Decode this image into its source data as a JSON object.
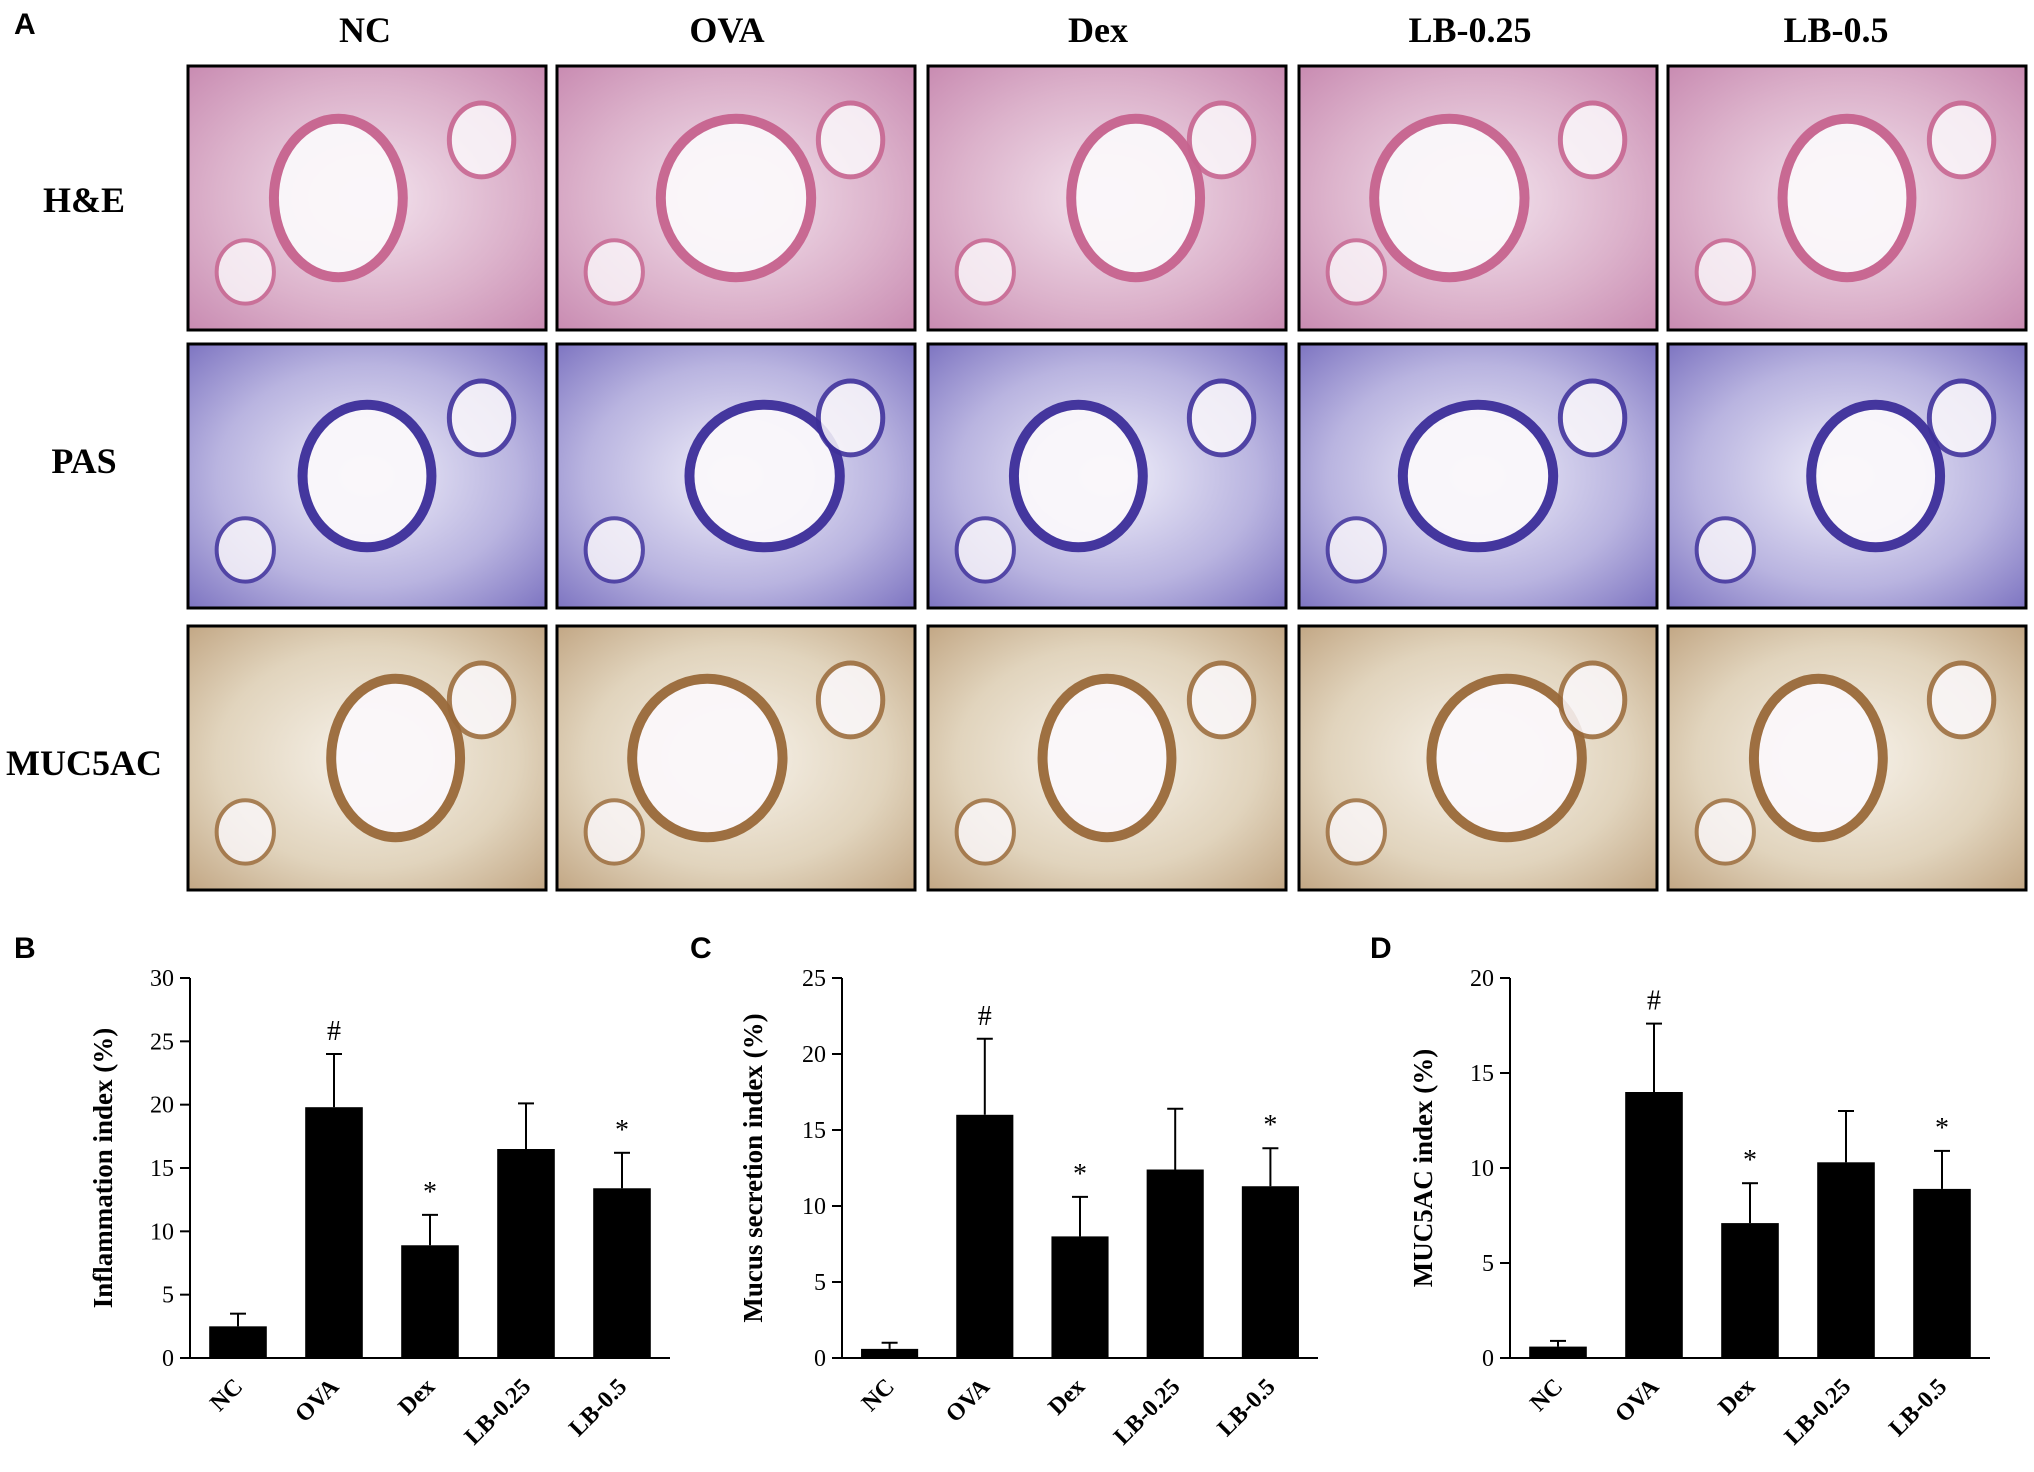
{
  "panels": {
    "A": "A",
    "B": "B",
    "C": "C",
    "D": "D"
  },
  "micrographs": {
    "columns": [
      "NC",
      "OVA",
      "Dex",
      "LB-0.25",
      "LB-0.5"
    ],
    "rows": [
      "H&E",
      "PAS",
      "MUC5AC"
    ],
    "stain_colors": {
      "H&E": "#d8a6c4",
      "PAS": "#8e86c9",
      "MUC5AC": "#d8cbb5"
    }
  },
  "chart_data": [
    {
      "type": "bar",
      "panel": "B",
      "title": "",
      "xlabel": "",
      "ylabel": "Inflammation index (%)",
      "categories": [
        "NC",
        "OVA",
        "Dex",
        "LB-0.25",
        "LB-0.5"
      ],
      "values": [
        2.5,
        19.8,
        8.9,
        16.5,
        13.4
      ],
      "errors": [
        1.0,
        4.2,
        2.4,
        3.6,
        2.8
      ],
      "marks": [
        "",
        "#",
        "*",
        "",
        "*"
      ],
      "ylim": [
        0,
        30
      ],
      "yticks": [
        0,
        5,
        10,
        15,
        20,
        25,
        30
      ],
      "bar_color": "#000000",
      "grid": false
    },
    {
      "type": "bar",
      "panel": "C",
      "title": "",
      "xlabel": "",
      "ylabel": "Mucus secretion index (%)",
      "categories": [
        "NC",
        "OVA",
        "Dex",
        "LB-0.25",
        "LB-0.5"
      ],
      "values": [
        0.6,
        16.0,
        8.0,
        12.4,
        11.3
      ],
      "errors": [
        0.4,
        5.0,
        2.6,
        4.0,
        2.5
      ],
      "marks": [
        "",
        "#",
        "*",
        "",
        "*"
      ],
      "ylim": [
        0,
        25
      ],
      "yticks": [
        0,
        5,
        10,
        15,
        20,
        25
      ],
      "bar_color": "#000000",
      "grid": false
    },
    {
      "type": "bar",
      "panel": "D",
      "title": "",
      "xlabel": "",
      "ylabel": "MUC5AC index (%)",
      "categories": [
        "NC",
        "OVA",
        "Dex",
        "LB-0.25",
        "LB-0.5"
      ],
      "values": [
        0.6,
        14.0,
        7.1,
        10.3,
        8.9
      ],
      "errors": [
        0.3,
        3.6,
        2.1,
        2.7,
        2.0
      ],
      "marks": [
        "",
        "#",
        "*",
        "",
        "*"
      ],
      "ylim": [
        0,
        20
      ],
      "yticks": [
        0,
        5,
        10,
        15,
        20
      ],
      "bar_color": "#000000",
      "grid": false
    }
  ]
}
